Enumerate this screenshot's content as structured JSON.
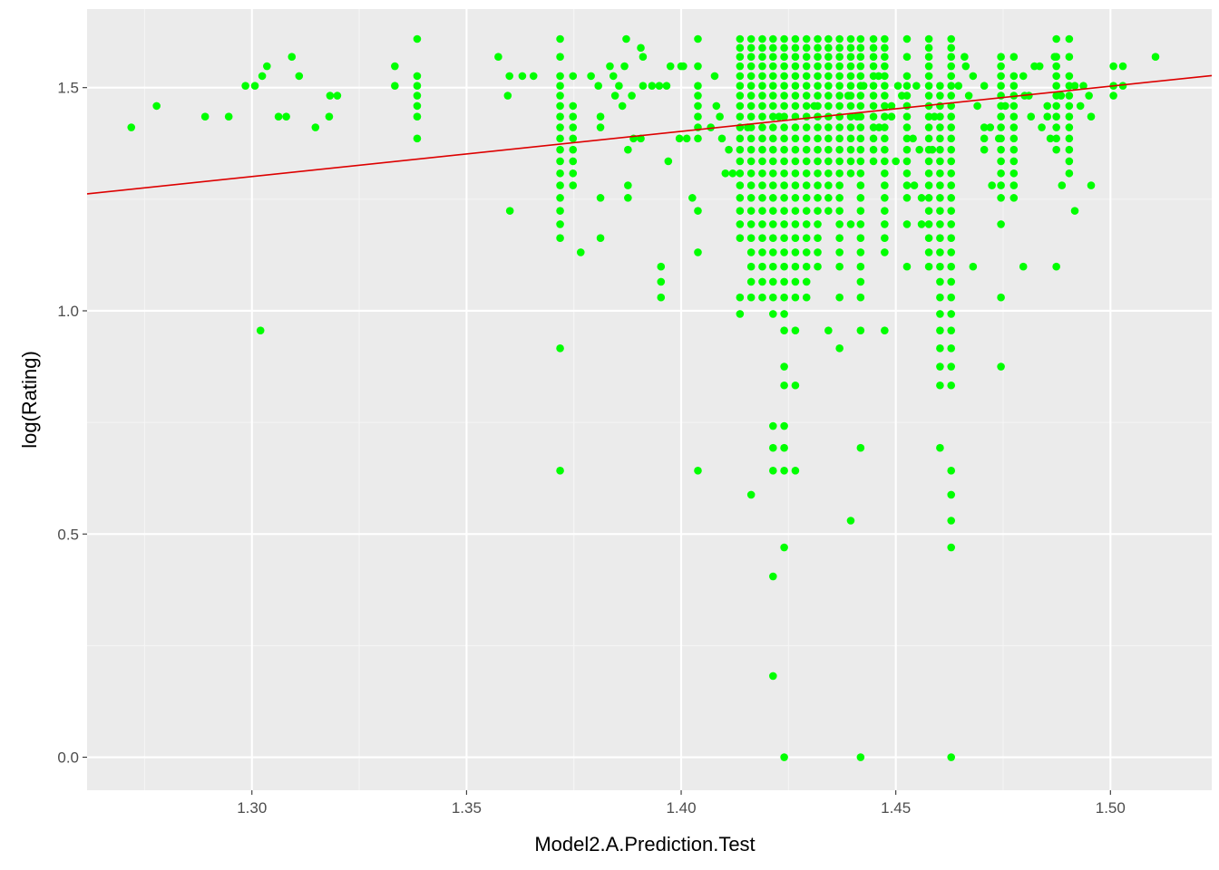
{
  "chart_data": {
    "type": "scatter",
    "title": "",
    "xlabel": "Model2.A.Prediction.Test",
    "ylabel": "log(Rating)",
    "xlim": [
      1.2616,
      1.5236
    ],
    "ylim": [
      -0.074,
      1.676
    ],
    "x_ticks": [
      1.3,
      1.35,
      1.4,
      1.45,
      1.5
    ],
    "x_tick_labels": [
      "1.30",
      "1.35",
      "1.40",
      "1.45",
      "1.50"
    ],
    "y_ticks": [
      0.0,
      0.5,
      1.0,
      1.5
    ],
    "y_tick_labels": [
      "0.0",
      "0.5",
      "1.0",
      "1.5"
    ],
    "grid": true,
    "legend": "none",
    "colors": {
      "panel": "#ebebeb",
      "grid_major": "#ffffff",
      "grid_minor": "#f5f5f5",
      "points": "#00ff00",
      "fit_line": "#dd0000"
    },
    "fit_line": {
      "x": [
        1.2616,
        1.5236
      ],
      "y": [
        1.262,
        1.527
      ]
    },
    "vertical_point_groups": [
      {
        "x": 1.3718,
        "y": [
          1.609,
          1.569,
          1.526,
          1.504,
          1.482,
          1.459,
          1.435,
          1.411,
          1.386,
          1.361,
          1.335,
          1.308,
          1.281,
          1.253,
          1.224,
          1.194,
          1.163,
          0.916,
          0.642
        ]
      },
      {
        "x": 1.3748,
        "y": [
          1.526,
          1.459,
          1.435,
          1.411,
          1.386,
          1.361,
          1.335,
          1.308,
          1.281
        ]
      },
      {
        "x": 1.3385,
        "y": [
          1.609,
          1.526,
          1.504,
          1.482,
          1.459,
          1.435,
          1.386
        ]
      },
      {
        "x": 1.3953,
        "y": [
          1.099,
          1.065,
          1.03
        ]
      },
      {
        "x": 1.4039,
        "y": [
          1.609,
          1.548,
          1.504,
          1.482,
          1.459,
          1.435,
          1.411,
          1.386,
          1.224,
          1.131,
          0.642
        ]
      },
      {
        "x": 1.4137,
        "y": [
          1.609,
          1.589,
          1.569,
          1.548,
          1.526,
          1.504,
          1.482,
          1.459,
          1.435,
          1.411,
          1.386,
          1.361,
          1.335,
          1.308,
          1.281,
          1.253,
          1.224,
          1.194,
          1.163,
          1.03,
          0.993
        ]
      },
      {
        "x": 1.4163,
        "y": [
          1.609,
          1.589,
          1.569,
          1.548,
          1.526,
          1.504,
          1.482,
          1.459,
          1.435,
          1.411,
          1.386,
          1.361,
          1.335,
          1.308,
          1.281,
          1.253,
          1.224,
          1.194,
          1.163,
          1.131,
          1.099,
          1.065,
          1.03,
          0.588
        ]
      },
      {
        "x": 1.4189,
        "y": [
          1.609,
          1.589,
          1.569,
          1.548,
          1.526,
          1.504,
          1.482,
          1.459,
          1.435,
          1.411,
          1.386,
          1.361,
          1.335,
          1.308,
          1.281,
          1.253,
          1.224,
          1.194,
          1.163,
          1.131,
          1.099,
          1.065,
          1.03
        ]
      },
      {
        "x": 1.4214,
        "y": [
          1.609,
          1.589,
          1.569,
          1.548,
          1.526,
          1.504,
          1.482,
          1.459,
          1.435,
          1.411,
          1.386,
          1.361,
          1.335,
          1.308,
          1.281,
          1.253,
          1.224,
          1.194,
          1.163,
          1.131,
          1.099,
          1.065,
          1.03,
          0.993,
          0.742,
          0.693,
          0.642,
          0.405,
          0.182
        ]
      },
      {
        "x": 1.424,
        "y": [
          1.609,
          1.589,
          1.569,
          1.548,
          1.526,
          1.504,
          1.482,
          1.459,
          1.435,
          1.411,
          1.386,
          1.361,
          1.335,
          1.308,
          1.281,
          1.253,
          1.224,
          1.194,
          1.163,
          1.131,
          1.099,
          1.065,
          1.03,
          0.993,
          0.956,
          0.875,
          0.833,
          0.742,
          0.693,
          0.642,
          0.47,
          0.0
        ]
      },
      {
        "x": 1.4266,
        "y": [
          1.609,
          1.589,
          1.569,
          1.548,
          1.526,
          1.504,
          1.482,
          1.459,
          1.435,
          1.411,
          1.386,
          1.361,
          1.335,
          1.308,
          1.281,
          1.253,
          1.224,
          1.194,
          1.163,
          1.131,
          1.099,
          1.065,
          1.03,
          0.956,
          0.833,
          0.642
        ]
      },
      {
        "x": 1.4292,
        "y": [
          1.609,
          1.589,
          1.569,
          1.548,
          1.526,
          1.504,
          1.482,
          1.459,
          1.435,
          1.411,
          1.386,
          1.361,
          1.335,
          1.308,
          1.281,
          1.253,
          1.224,
          1.194,
          1.163,
          1.131,
          1.099,
          1.065,
          1.03
        ]
      },
      {
        "x": 1.4318,
        "y": [
          1.609,
          1.589,
          1.569,
          1.548,
          1.526,
          1.504,
          1.482,
          1.459,
          1.435,
          1.411,
          1.386,
          1.361,
          1.335,
          1.308,
          1.281,
          1.253,
          1.224,
          1.194,
          1.163,
          1.131,
          1.099
        ]
      },
      {
        "x": 1.4343,
        "y": [
          1.609,
          1.589,
          1.569,
          1.548,
          1.526,
          1.504,
          1.482,
          1.459,
          1.435,
          1.411,
          1.386,
          1.361,
          1.335,
          1.308,
          1.281,
          1.253,
          1.224,
          0.956
        ]
      },
      {
        "x": 1.4369,
        "y": [
          1.609,
          1.589,
          1.569,
          1.548,
          1.526,
          1.504,
          1.482,
          1.459,
          1.435,
          1.411,
          1.386,
          1.361,
          1.335,
          1.308,
          1.281,
          1.253,
          1.224,
          1.194,
          1.163,
          1.131,
          1.099,
          1.03,
          0.916
        ]
      },
      {
        "x": 1.4395,
        "y": [
          1.609,
          1.589,
          1.569,
          1.548,
          1.526,
          1.504,
          1.482,
          1.459,
          1.435,
          1.411,
          1.386,
          1.361,
          1.335,
          1.308,
          1.194,
          0.53
        ]
      },
      {
        "x": 1.4418,
        "y": [
          1.609,
          1.589,
          1.569,
          1.548,
          1.526,
          1.504,
          1.482,
          1.459,
          1.435,
          1.411,
          1.386,
          1.361,
          1.335,
          1.308,
          1.281,
          1.253,
          1.224,
          1.194,
          1.163,
          1.131,
          1.099,
          1.065,
          1.03,
          0.956,
          0.693,
          0.0
        ]
      },
      {
        "x": 1.4448,
        "y": [
          1.609,
          1.589,
          1.569,
          1.548,
          1.526,
          1.504,
          1.482,
          1.459,
          1.435,
          1.411,
          1.386,
          1.361,
          1.335
        ]
      },
      {
        "x": 1.4474,
        "y": [
          1.609,
          1.589,
          1.569,
          1.548,
          1.526,
          1.504,
          1.482,
          1.459,
          1.435,
          1.411,
          1.386,
          1.361,
          1.335,
          1.308,
          1.281,
          1.253,
          1.224,
          1.194,
          1.163,
          1.131,
          0.956
        ]
      },
      {
        "x": 1.4526,
        "y": [
          1.609,
          1.569,
          1.526,
          1.504,
          1.482,
          1.459,
          1.435,
          1.411,
          1.386,
          1.361,
          1.335,
          1.308,
          1.281,
          1.253,
          1.194,
          1.099
        ]
      },
      {
        "x": 1.4577,
        "y": [
          1.609,
          1.589,
          1.569,
          1.548,
          1.526,
          1.504,
          1.482,
          1.459,
          1.435,
          1.411,
          1.386,
          1.361,
          1.335,
          1.308,
          1.281,
          1.253,
          1.224,
          1.194,
          1.163,
          1.131,
          1.099
        ]
      },
      {
        "x": 1.4603,
        "y": [
          1.504,
          1.482,
          1.459,
          1.435,
          1.411,
          1.386,
          1.361,
          1.335,
          1.308,
          1.281,
          1.253,
          1.224,
          1.194,
          1.163,
          1.131,
          1.099,
          1.065,
          1.03,
          0.993,
          0.956,
          0.916,
          0.875,
          0.833,
          0.693
        ]
      },
      {
        "x": 1.4629,
        "y": [
          1.609,
          1.589,
          1.569,
          1.548,
          1.526,
          1.504,
          1.482,
          1.459,
          1.435,
          1.411,
          1.386,
          1.361,
          1.335,
          1.308,
          1.281,
          1.253,
          1.224,
          1.194,
          1.163,
          1.131,
          1.099,
          1.065,
          1.03,
          0.993,
          0.956,
          0.916,
          0.875,
          0.833,
          0.642,
          0.588,
          0.53,
          0.47,
          0.0
        ]
      },
      {
        "x": 1.4745,
        "y": [
          1.569,
          1.548,
          1.526,
          1.504,
          1.482,
          1.459,
          1.435,
          1.411,
          1.386,
          1.361,
          1.335,
          1.308,
          1.281,
          1.253,
          1.194,
          1.03,
          0.875
        ]
      },
      {
        "x": 1.4775,
        "y": [
          1.569,
          1.526,
          1.504,
          1.482,
          1.459,
          1.435,
          1.411,
          1.386,
          1.361,
          1.335,
          1.308,
          1.281,
          1.253
        ]
      },
      {
        "x": 1.4874,
        "y": [
          1.609,
          1.569,
          1.548,
          1.526,
          1.504,
          1.482,
          1.459,
          1.435,
          1.411,
          1.386,
          1.361,
          1.099
        ]
      },
      {
        "x": 1.4904,
        "y": [
          1.609,
          1.569,
          1.526,
          1.504,
          1.482,
          1.459,
          1.435,
          1.411,
          1.386,
          1.361,
          1.335,
          1.308
        ]
      }
    ],
    "scatter_points": [
      [
        1.2719,
        1.411
      ],
      [
        1.2778,
        1.459
      ],
      [
        1.2891,
        1.435
      ],
      [
        1.2946,
        1.435
      ],
      [
        1.2985,
        1.504
      ],
      [
        1.3007,
        1.504
      ],
      [
        1.3024,
        1.526
      ],
      [
        1.3035,
        1.548
      ],
      [
        1.302,
        0.956
      ],
      [
        1.3062,
        1.435
      ],
      [
        1.308,
        1.435
      ],
      [
        1.3093,
        1.569
      ],
      [
        1.311,
        1.526
      ],
      [
        1.3148,
        1.411
      ],
      [
        1.318,
        1.435
      ],
      [
        1.3182,
        1.482
      ],
      [
        1.3199,
        1.482
      ],
      [
        1.3333,
        1.548
      ],
      [
        1.3333,
        1.504
      ],
      [
        1.3574,
        1.569
      ],
      [
        1.3596,
        1.482
      ],
      [
        1.36,
        1.526
      ],
      [
        1.3601,
        1.224
      ],
      [
        1.363,
        1.526
      ],
      [
        1.3656,
        1.526
      ],
      [
        1.3766,
        1.131
      ],
      [
        1.379,
        1.526
      ],
      [
        1.3807,
        1.504
      ],
      [
        1.3812,
        1.435
      ],
      [
        1.3812,
        1.411
      ],
      [
        1.3812,
        1.253
      ],
      [
        1.3812,
        1.163
      ],
      [
        1.3834,
        1.548
      ],
      [
        1.3842,
        1.526
      ],
      [
        1.3846,
        1.482
      ],
      [
        1.3855,
        1.504
      ],
      [
        1.3863,
        1.459
      ],
      [
        1.3868,
        1.548
      ],
      [
        1.3872,
        1.609
      ],
      [
        1.3876,
        1.361
      ],
      [
        1.3876,
        1.281
      ],
      [
        1.3876,
        1.253
      ],
      [
        1.3885,
        1.482
      ],
      [
        1.3889,
        1.386
      ],
      [
        1.3906,
        1.386
      ],
      [
        1.3906,
        1.589
      ],
      [
        1.3911,
        1.569
      ],
      [
        1.3911,
        1.504
      ],
      [
        1.3932,
        1.504
      ],
      [
        1.3949,
        1.504
      ],
      [
        1.3966,
        1.504
      ],
      [
        1.3975,
        1.548
      ],
      [
        1.397,
        1.335
      ],
      [
        1.3996,
        1.386
      ],
      [
        1.4,
        1.548
      ],
      [
        1.4005,
        1.548
      ],
      [
        1.4013,
        1.386
      ],
      [
        1.4026,
        1.253
      ],
      [
        1.4078,
        1.526
      ],
      [
        1.4082,
        1.459
      ],
      [
        1.409,
        1.435
      ],
      [
        1.4095,
        1.386
      ],
      [
        1.4103,
        1.308
      ],
      [
        1.4111,
        1.361
      ],
      [
        1.412,
        1.308
      ],
      [
        1.4505,
        1.504
      ],
      [
        1.45,
        1.335
      ],
      [
        1.4548,
        1.504
      ],
      [
        1.4555,
        1.361
      ],
      [
        1.456,
        1.253
      ],
      [
        1.456,
        1.194
      ],
      [
        1.4543,
        1.281
      ],
      [
        1.4646,
        1.504
      ],
      [
        1.466,
        1.569
      ],
      [
        1.4663,
        1.548
      ],
      [
        1.468,
        1.526
      ],
      [
        1.468,
        1.099
      ],
      [
        1.4706,
        1.504
      ],
      [
        1.4706,
        1.411
      ],
      [
        1.4706,
        1.386
      ],
      [
        1.4706,
        1.361
      ],
      [
        1.4724,
        1.281
      ],
      [
        1.4797,
        1.526
      ],
      [
        1.4797,
        1.099
      ],
      [
        1.481,
        1.482
      ],
      [
        1.4823,
        1.548
      ],
      [
        1.4835,
        1.548
      ],
      [
        1.4853,
        1.435
      ],
      [
        1.4853,
        1.459
      ],
      [
        1.487,
        1.569
      ],
      [
        1.4885,
        1.482
      ],
      [
        1.4887,
        1.281
      ],
      [
        1.4917,
        1.504
      ],
      [
        1.4917,
        1.224
      ],
      [
        1.4937,
        1.504
      ],
      [
        1.495,
        1.482
      ],
      [
        1.4955,
        1.435
      ],
      [
        1.4955,
        1.281
      ],
      [
        1.5007,
        1.504
      ],
      [
        1.5007,
        1.482
      ],
      [
        1.5007,
        1.548
      ],
      [
        1.5029,
        1.548
      ],
      [
        1.5029,
        1.504
      ],
      [
        1.5105,
        1.569
      ],
      [
        1.4069,
        1.411
      ],
      [
        1.4155,
        1.411
      ],
      [
        1.4228,
        1.435
      ],
      [
        1.431,
        1.459
      ],
      [
        1.4389,
        1.482
      ],
      [
        1.4461,
        1.411
      ],
      [
        1.449,
        1.435
      ],
      [
        1.454,
        1.386
      ],
      [
        1.4585,
        1.361
      ],
      [
        1.459,
        1.435
      ],
      [
        1.467,
        1.482
      ],
      [
        1.469,
        1.459
      ],
      [
        1.472,
        1.411
      ],
      [
        1.474,
        1.386
      ],
      [
        1.4755,
        1.459
      ],
      [
        1.48,
        1.482
      ],
      [
        1.4815,
        1.435
      ],
      [
        1.484,
        1.411
      ],
      [
        1.486,
        1.386
      ],
      [
        1.493,
        1.459
      ],
      [
        1.441,
        1.435
      ],
      [
        1.4425,
        1.504
      ],
      [
        1.446,
        1.526
      ],
      [
        1.4514,
        1.482
      ],
      [
        1.449,
        1.459
      ]
    ]
  }
}
